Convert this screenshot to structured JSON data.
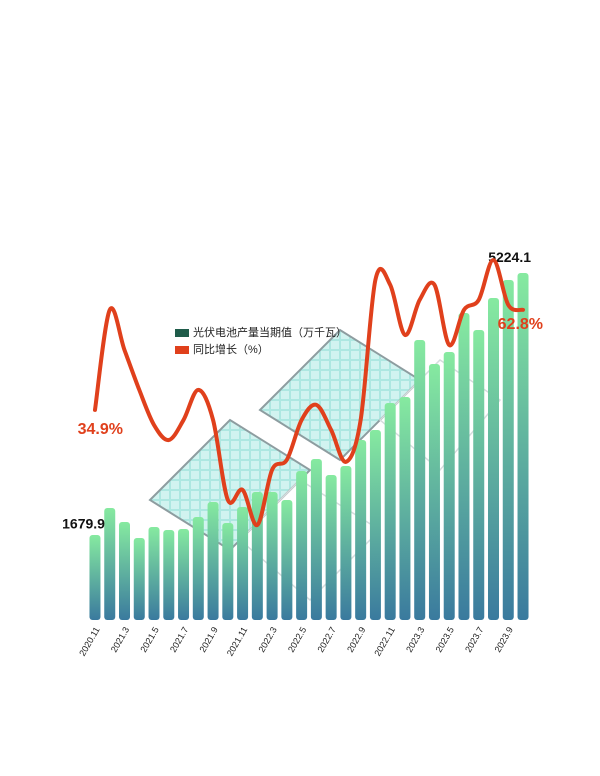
{
  "chart_data": {
    "type": "bar",
    "categories": [
      "2020.11",
      null,
      "2021.3",
      null,
      "2021.5",
      null,
      "2021.7",
      null,
      "2021.9",
      null,
      "2021.11",
      null,
      "2022.3",
      null,
      "2022.5",
      null,
      "2022.7",
      null,
      "2022.9",
      null,
      "2022.11",
      null,
      "2023.3",
      null,
      "2023.5",
      null,
      "2023.7",
      null,
      "2023.9",
      null
    ],
    "series": [
      {
        "name": "光伏电池产量当期值（万千瓦）",
        "type": "bar",
        "color": "#1f5c4a",
        "values": [
          1679.9,
          2045,
          1856,
          1640,
          1788,
          1748,
          1761,
          1924,
          2127,
          1842,
          2059,
          2262,
          2262,
          2154,
          2546,
          2708,
          2492,
          2614,
          2965,
          3101,
          3466,
          3547,
          4318,
          3994,
          4156,
          4684,
          4454,
          4887,
          5130,
          5224.1
        ]
      },
      {
        "name": "同比增长（%）",
        "type": "line",
        "axis": "y2",
        "color": "#e0401c",
        "values": [
          34.9,
          62.8,
          51.6,
          40.5,
          30.7,
          26.5,
          32.1,
          40.5,
          32.1,
          9.8,
          12.6,
          2.8,
          18.2,
          21.0,
          32.1,
          36.3,
          29.3,
          20.4,
          32.1,
          71.2,
          69.8,
          55.8,
          65.6,
          69.8,
          53.0,
          62.8,
          65.6,
          76.7,
          64.2,
          62.8
        ],
        "value_labels": [
          "34.9%",
          null,
          null,
          null,
          null,
          null,
          null,
          null,
          null,
          null,
          null,
          null,
          null,
          null,
          null,
          null,
          null,
          null,
          null,
          null,
          null,
          null,
          null,
          null,
          null,
          null,
          null,
          null,
          null,
          "62.8%"
        ]
      }
    ],
    "ylim": [
      530,
      5536
    ],
    "y2lim": [
      -23.7,
      79.5
    ]
  }
}
